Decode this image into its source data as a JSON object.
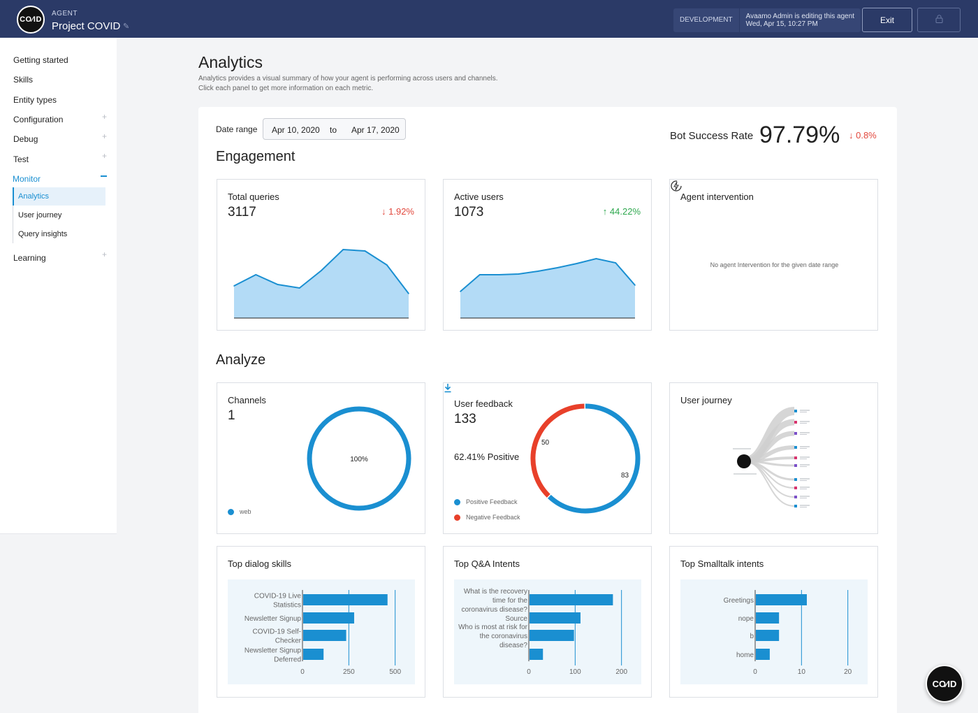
{
  "header": {
    "logo_text": "CO∕ID",
    "agent_label": "AGENT",
    "agent_name": "Project COVID",
    "environment": "DEVELOPMENT",
    "editing_info": "Avaamo Admin is editing this agent",
    "editing_time": "Wed, Apr 15, 10:27 PM",
    "exit_label": "Exit"
  },
  "sidebar": {
    "items": [
      {
        "label": "Getting started"
      },
      {
        "label": "Skills"
      },
      {
        "label": "Entity types"
      },
      {
        "label": "Configuration"
      },
      {
        "label": "Debug"
      },
      {
        "label": "Test"
      },
      {
        "label": "Monitor"
      },
      {
        "label": "Learning"
      }
    ],
    "monitor_sub": [
      {
        "label": "Analytics"
      },
      {
        "label": "User journey"
      },
      {
        "label": "Query insights"
      }
    ]
  },
  "page": {
    "title": "Analytics",
    "desc_line1": "Analytics provides a visual summary of how your agent is performing across users and channels.",
    "desc_line2": "Click each panel to get more information on each metric."
  },
  "filters": {
    "date_range_label": "Date range",
    "from": "Apr 10, 2020",
    "to_label": "to",
    "to": "Apr 17, 2020"
  },
  "bot_success": {
    "label": "Bot Success Rate",
    "value": "97.79%",
    "delta": "↓ 0.8%"
  },
  "sections": {
    "engagement": "Engagement",
    "analyze": "Analyze"
  },
  "engagement": {
    "total_queries": {
      "title": "Total queries",
      "value": "3117",
      "delta": "↓ 1.92%"
    },
    "active_users": {
      "title": "Active users",
      "value": "1073",
      "delta": "↑ 44.22%"
    },
    "agent_intervention": {
      "title": "Agent intervention",
      "empty_text": "No agent Intervention for the given date range"
    }
  },
  "analyze": {
    "channels": {
      "title": "Channels",
      "value": "1",
      "center_label": "100%",
      "legend": "web"
    },
    "user_feedback": {
      "title": "User feedback",
      "value": "133",
      "positive_pct": "62.41% Positive",
      "positive_legend": "Positive Feedback",
      "negative_legend": "Negative Feedback",
      "negative_count": "50",
      "positive_count": "83"
    },
    "user_journey": {
      "title": "User journey"
    }
  },
  "top_charts": {
    "dialog": {
      "title": "Top dialog skills"
    },
    "qa": {
      "title": "Top Q&A Intents"
    },
    "smalltalk": {
      "title": "Top Smalltalk intents"
    }
  },
  "colors": {
    "accent": "#1a8fd1",
    "area_fill": "#b3dbf6",
    "positive": "#1a8fd1",
    "negative": "#e8402a",
    "header_bg": "#2b3a67"
  },
  "chart_data": [
    {
      "type": "area",
      "series": [
        {
          "values": [
            46,
            62,
            48,
            43,
            68,
            98,
            96,
            76,
            35
          ]
        }
      ],
      "ylim": [
        0,
        110
      ]
    },
    {
      "type": "area",
      "series": [
        {
          "values": [
            38,
            62,
            62,
            63,
            67,
            72,
            78,
            85,
            79,
            47
          ]
        }
      ],
      "ylim": [
        0,
        110
      ]
    },
    {
      "type": "pie",
      "categories": [
        "web"
      ],
      "values": [
        100
      ]
    },
    {
      "type": "pie",
      "categories": [
        "Positive Feedback",
        "Negative Feedback"
      ],
      "values": [
        83,
        50
      ]
    },
    {
      "type": "bar",
      "title": "Top dialog skills",
      "categories": [
        [
          "COVID-19 Live",
          "Statistics"
        ],
        [
          "Newsletter Signup"
        ],
        [
          "COVID-19 Self-",
          "Checker"
        ],
        [
          "Newsletter Signup",
          "Deferred"
        ]
      ],
      "values": [
        455,
        275,
        232,
        110
      ],
      "ticks": [
        0,
        250,
        500
      ],
      "xlim": [
        0,
        505
      ]
    },
    {
      "type": "bar",
      "title": "Top Q&A Intents",
      "categories": [
        [
          "What is the recovery",
          "time for the",
          "coronavirus disease?"
        ],
        [
          "Source"
        ],
        [
          "Who is most at risk for",
          "the coronavirus",
          "disease?"
        ],
        []
      ],
      "values": [
        180,
        110,
        96,
        29
      ],
      "ticks": [
        0,
        100,
        200
      ],
      "xlim": [
        0,
        202
      ]
    },
    {
      "type": "bar",
      "title": "Top Smalltalk intents",
      "categories": [
        [
          "Greetings"
        ],
        [
          "nope"
        ],
        [
          "b"
        ],
        [
          "home"
        ]
      ],
      "values": [
        11,
        5,
        5,
        3
      ],
      "ticks": [
        0,
        10,
        20
      ],
      "xlim": [
        0,
        20.2
      ]
    }
  ]
}
